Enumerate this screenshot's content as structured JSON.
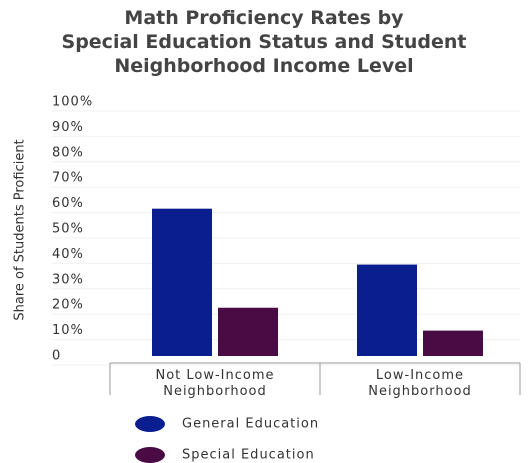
{
  "chart_data": {
    "type": "bar",
    "title": "Math Proficiency Rates by Special Education Status and Student Neighborhood Income Level",
    "y_label": "Share of Students Proficient",
    "categories": [
      "Not Low-Income Neighborhood",
      "Low-Income Neighborhood"
    ],
    "series": [
      {
        "name": "General Education",
        "color": "#0b1e8f",
        "values": [
          58,
          36
        ]
      },
      {
        "name": "Special Education",
        "color": "#4a0b45",
        "values": [
          19,
          10
        ]
      }
    ],
    "ylim": [
      0,
      100
    ],
    "yticks": [
      0,
      {
        "value": 10,
        "label": "10%"
      },
      {
        "value": 20,
        "label": "20%"
      },
      {
        "value": 30,
        "label": "30%"
      },
      {
        "value": 40,
        "label": "40%"
      },
      {
        "value": 50,
        "label": "50%"
      },
      {
        "value": 60,
        "label": "60%"
      },
      {
        "value": 70,
        "label": "70%"
      },
      {
        "value": 80,
        "label": "80%"
      },
      {
        "value": 90,
        "label": "90%"
      },
      {
        "value": 100,
        "label": "100%"
      }
    ],
    "grid": true
  }
}
